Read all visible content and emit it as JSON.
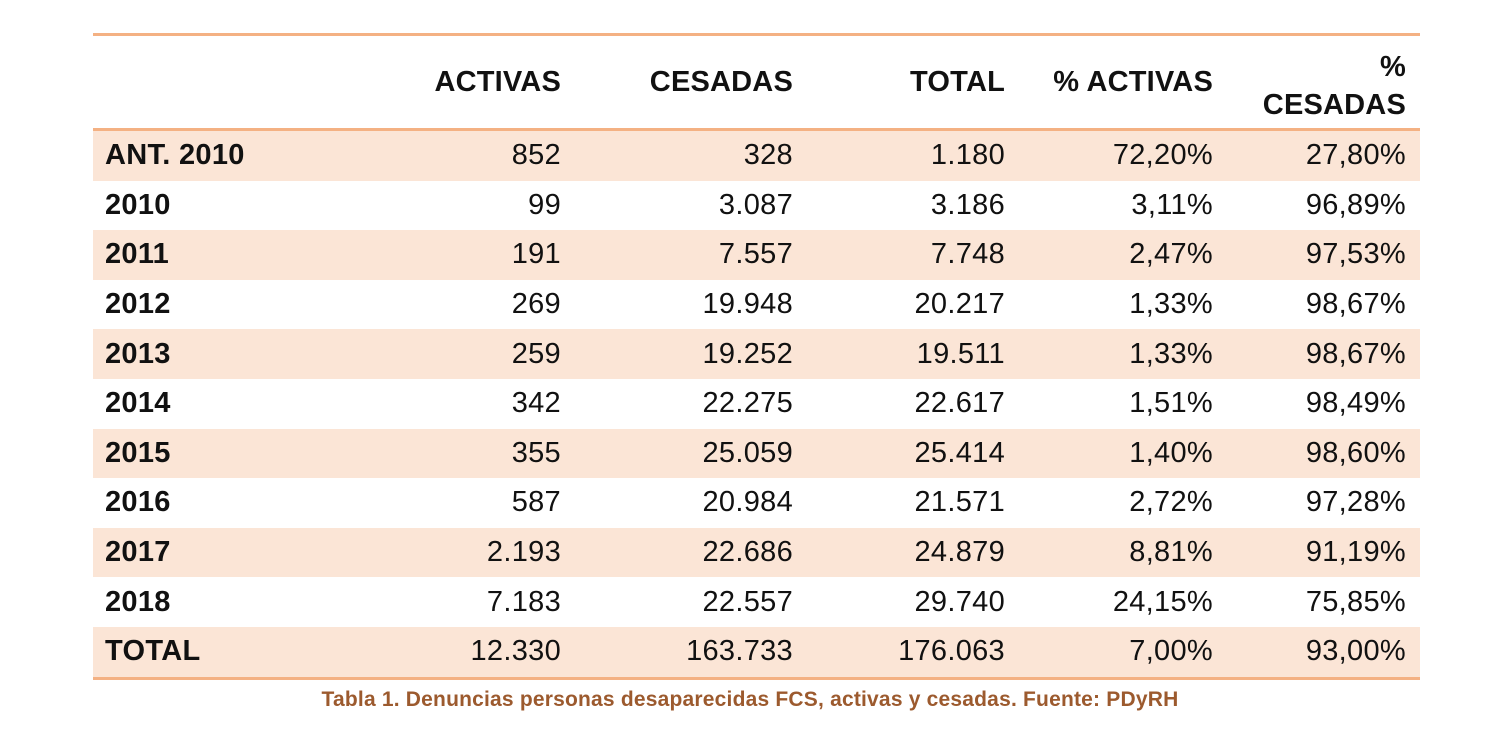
{
  "table": {
    "headers": [
      "",
      "ACTIVAS",
      "CESADAS",
      "TOTAL",
      "% ACTIVAS",
      "% CESADAS"
    ],
    "last_header_lines": [
      "%",
      "CESADAS"
    ],
    "rows": [
      {
        "label": "ANT. 2010",
        "activas": "852",
        "cesadas": "328",
        "total": "1.180",
        "pct_activas": "72,20%",
        "pct_cesadas": "27,80%"
      },
      {
        "label": "2010",
        "activas": "99",
        "cesadas": "3.087",
        "total": "3.186",
        "pct_activas": "3,11%",
        "pct_cesadas": "96,89%"
      },
      {
        "label": "2011",
        "activas": "191",
        "cesadas": "7.557",
        "total": "7.748",
        "pct_activas": "2,47%",
        "pct_cesadas": "97,53%"
      },
      {
        "label": "2012",
        "activas": "269",
        "cesadas": "19.948",
        "total": "20.217",
        "pct_activas": "1,33%",
        "pct_cesadas": "98,67%"
      },
      {
        "label": "2013",
        "activas": "259",
        "cesadas": "19.252",
        "total": "19.511",
        "pct_activas": "1,33%",
        "pct_cesadas": "98,67%"
      },
      {
        "label": "2014",
        "activas": "342",
        "cesadas": "22.275",
        "total": "22.617",
        "pct_activas": "1,51%",
        "pct_cesadas": "98,49%"
      },
      {
        "label": "2015",
        "activas": "355",
        "cesadas": "25.059",
        "total": "25.414",
        "pct_activas": "1,40%",
        "pct_cesadas": "98,60%"
      },
      {
        "label": "2016",
        "activas": "587",
        "cesadas": "20.984",
        "total": "21.571",
        "pct_activas": "2,72%",
        "pct_cesadas": "97,28%"
      },
      {
        "label": "2017",
        "activas": "2.193",
        "cesadas": "22.686",
        "total": "24.879",
        "pct_activas": "8,81%",
        "pct_cesadas": "91,19%"
      },
      {
        "label": "2018",
        "activas": "7.183",
        "cesadas": "22.557",
        "total": "29.740",
        "pct_activas": "24,15%",
        "pct_cesadas": "75,85%"
      },
      {
        "label": "TOTAL",
        "activas": "12.330",
        "cesadas": "163.733",
        "total": "176.063",
        "pct_activas": "7,00%",
        "pct_cesadas": "93,00%"
      }
    ]
  },
  "caption": "Tabla 1. Denuncias personas desaparecidas FCS, activas y cesadas. Fuente: PDyRH",
  "colors": {
    "rule": "#f4b183",
    "row_shade": "#fbe5d6",
    "caption": "#9c5a2e"
  }
}
